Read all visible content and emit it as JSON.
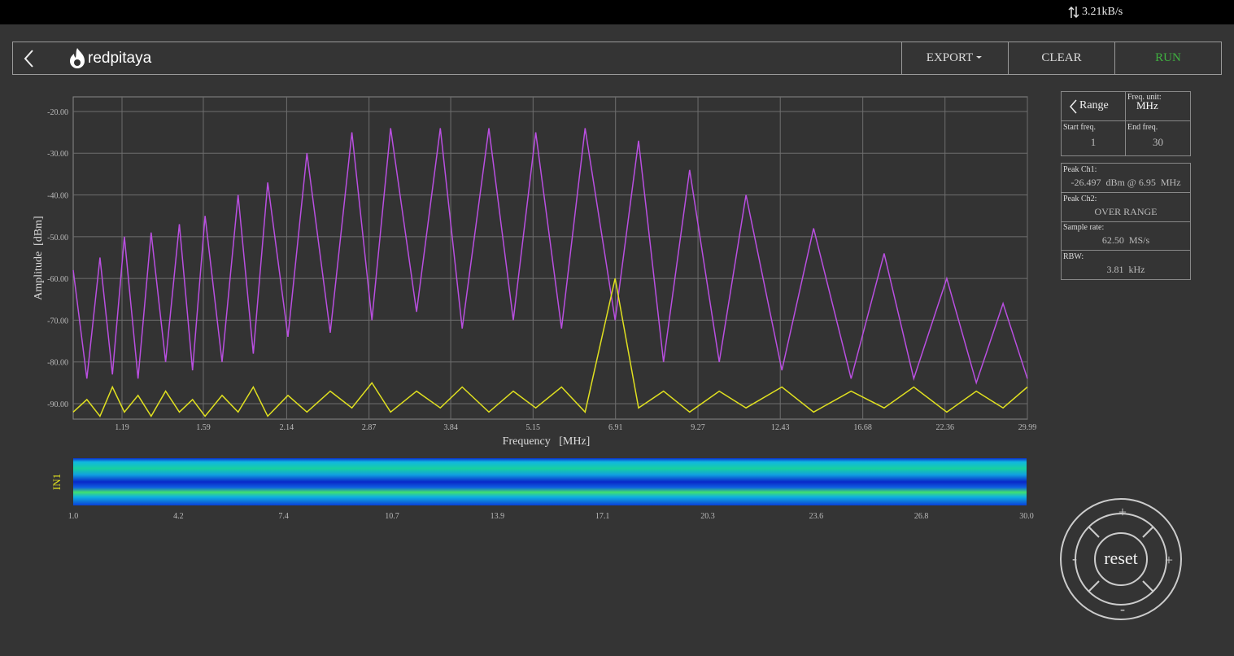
{
  "status_bar": {
    "speed": "3.21kB/s"
  },
  "header": {
    "logo": "redpitaya",
    "buttons": [
      "EXPORT",
      "CLEAR",
      "RUN"
    ]
  },
  "side_panel": {
    "range": {
      "title": "Range",
      "freq_unit_label": "Freq. unit:",
      "freq_unit": "MHz",
      "start_label": "Start freq.",
      "start": "1",
      "end_label": "End freq.",
      "end": "30"
    },
    "info": [
      {
        "label": "Peak Ch1:",
        "value": "-26.497  dBm @ 6.95  MHz"
      },
      {
        "label": "Peak Ch2:",
        "value": "OVER RANGE"
      },
      {
        "label": "Sample rate:",
        "value": "62.50  MS/s"
      },
      {
        "label": "RBW:",
        "value": "3.81  kHz"
      }
    ]
  },
  "dpad": {
    "center": "reset",
    "up": "+",
    "down": "-",
    "left": "-",
    "right": "+"
  },
  "chart_data": {
    "type": "line",
    "xlabel": "Frequency   [MHz]",
    "ylabel": "Amplitude  [dBm]",
    "xscale": "log",
    "grid": true,
    "xlim": [
      1,
      29.99
    ],
    "ylim": [
      -93.7,
      -16.5
    ],
    "xticks": [
      1.19,
      1.59,
      2.14,
      2.87,
      3.84,
      5.15,
      6.91,
      9.27,
      12.43,
      16.68,
      22.36,
      29.99
    ],
    "yticks": [
      {
        "value": -20,
        "label": "-20.00"
      },
      {
        "value": -30,
        "label": "-30.00"
      },
      {
        "value": -40,
        "label": "-40.00"
      },
      {
        "value": -50,
        "label": "-50.00"
      },
      {
        "value": -60,
        "label": "-60.00"
      },
      {
        "value": -70,
        "label": "-70.00"
      },
      {
        "value": -80,
        "label": "-80.00"
      },
      {
        "value": -90,
        "label": "-90.00"
      }
    ],
    "x": [
      1.0,
      1.05,
      1.1,
      1.15,
      1.2,
      1.26,
      1.32,
      1.39,
      1.46,
      1.53,
      1.6,
      1.7,
      1.8,
      1.9,
      2.0,
      2.15,
      2.3,
      2.5,
      2.7,
      2.9,
      3.1,
      3.4,
      3.7,
      4.0,
      4.4,
      4.8,
      5.2,
      5.7,
      6.2,
      6.9,
      7.5,
      8.2,
      9.0,
      10,
      11,
      12.5,
      14,
      16,
      18,
      20,
      22.5,
      25,
      27.5,
      29.99
    ],
    "series": [
      {
        "color": "#b94fe0",
        "values": [
          -58,
          -84,
          -55,
          -83,
          -50,
          -84,
          -49,
          -80,
          -47,
          -82,
          -45,
          -80,
          -40,
          -78,
          -37,
          -74,
          -30,
          -73,
          -25,
          -70,
          -24,
          -68,
          -24,
          -72,
          -24,
          -70,
          -25,
          -72,
          -24,
          -70,
          -27,
          -80,
          -34,
          -80,
          -40,
          -82,
          -48,
          -84,
          -54,
          -84,
          -60,
          -85,
          -66,
          -84
        ]
      },
      {
        "color": "#e0e020",
        "values": [
          -92,
          -89,
          -93,
          -86,
          -92,
          -88,
          -93,
          -87,
          -92,
          -89,
          -93,
          -88,
          -92,
          -86,
          -93,
          -88,
          -92,
          -87,
          -91,
          -85,
          -92,
          -87,
          -91,
          -86,
          -92,
          -87,
          -91,
          -86,
          -92,
          -60,
          -91,
          -87,
          -92,
          -87,
          -91,
          -86,
          -92,
          -87,
          -91,
          -86,
          -92,
          -87,
          -91,
          -86
        ]
      }
    ]
  },
  "waterfall": {
    "label": "IN1",
    "xlim": [
      1,
      30
    ],
    "xticks": [
      {
        "value": 1,
        "label": "1.0"
      },
      4.2,
      7.4,
      10.7,
      13.9,
      17.1,
      20.3,
      23.6,
      26.8,
      {
        "value": 30,
        "label": "30.0"
      }
    ]
  }
}
